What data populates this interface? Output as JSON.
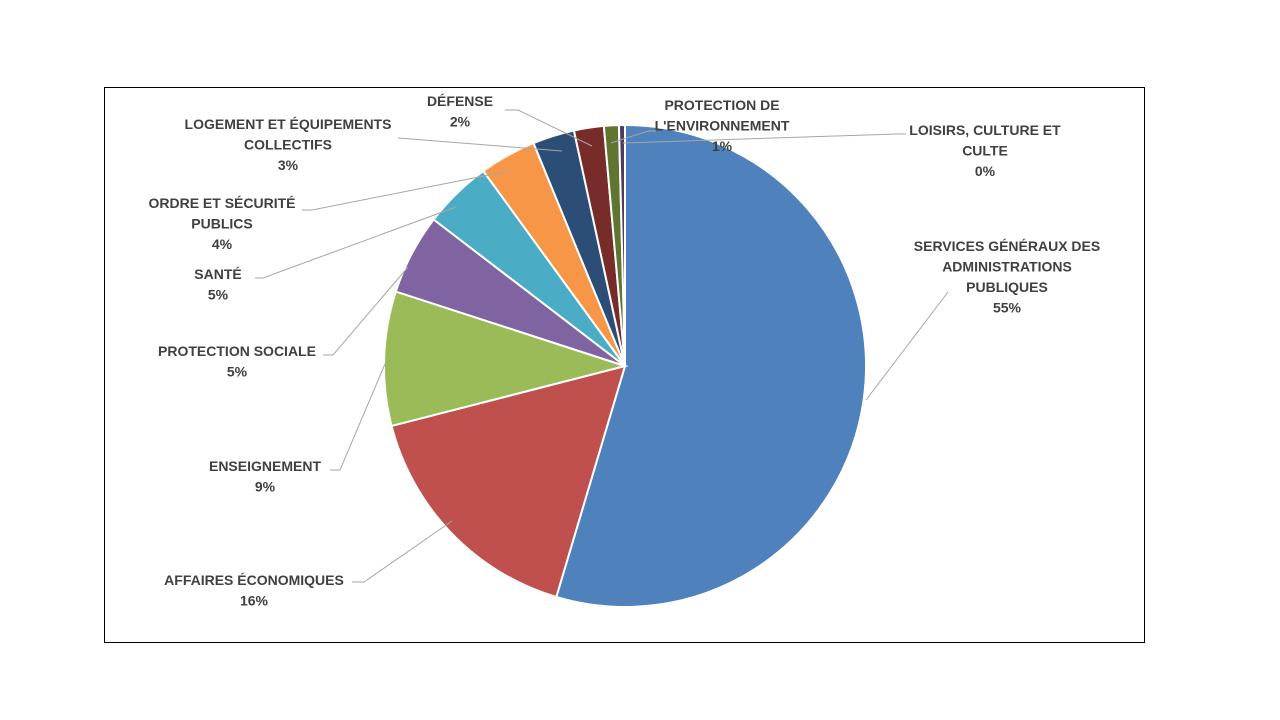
{
  "chart_data": {
    "type": "pie",
    "title": "",
    "legend": "none",
    "slices": [
      {
        "name": "SERVICES GÉNÉRAUX DES ADMINISTRATIONS PUBLIQUES",
        "label_lines": [
          "SERVICES GÉNÉRAUX DES",
          "ADMINISTRATIONS",
          "PUBLIQUES"
        ],
        "pct_label": "55%",
        "value": 54.6,
        "color": "#4f81bd"
      },
      {
        "name": "AFFAIRES ÉCONOMIQUES",
        "label_lines": [
          "AFFAIRES ÉCONOMIQUES"
        ],
        "pct_label": "16%",
        "value": 16.4,
        "color": "#c0504d"
      },
      {
        "name": "ENSEIGNEMENT",
        "label_lines": [
          "ENSEIGNEMENT"
        ],
        "pct_label": "9%",
        "value": 9.0,
        "color": "#9bbb59"
      },
      {
        "name": "PROTECTION SOCIALE",
        "label_lines": [
          "PROTECTION SOCIALE"
        ],
        "pct_label": "5%",
        "value": 5.4,
        "color": "#8064a2"
      },
      {
        "name": "SANTÉ",
        "label_lines": [
          "SANTÉ"
        ],
        "pct_label": "5%",
        "value": 4.6,
        "color": "#4bacc6"
      },
      {
        "name": "ORDRE ET SÉCURITÉ PUBLICS",
        "label_lines": [
          "ORDRE ET SÉCURITÉ",
          "PUBLICS"
        ],
        "pct_label": "4%",
        "value": 3.8,
        "color": "#f79646"
      },
      {
        "name": "LOGEMENT ET ÉQUIPEMENTS COLLECTIFS",
        "label_lines": [
          "LOGEMENT ET ÉQUIPEMENTS",
          "COLLECTIFS"
        ],
        "pct_label": "3%",
        "value": 2.8,
        "color": "#2c4d75"
      },
      {
        "name": "DÉFENSE",
        "label_lines": [
          "DÉFENSE"
        ],
        "pct_label": "2%",
        "value": 2.0,
        "color": "#772c2a"
      },
      {
        "name": "PROTECTION DE L'ENVIRONNEMENT",
        "label_lines": [
          "PROTECTION DE",
          "L'ENVIRONNEMENT"
        ],
        "pct_label": "1%",
        "value": 1.0,
        "color": "#5f7530"
      },
      {
        "name": "LOISIRS, CULTURE ET CULTE",
        "label_lines": [
          "LOISIRS, CULTURE ET",
          "CULTE"
        ],
        "pct_label": "0%",
        "value": 0.4,
        "color": "#4d3b62"
      }
    ]
  }
}
